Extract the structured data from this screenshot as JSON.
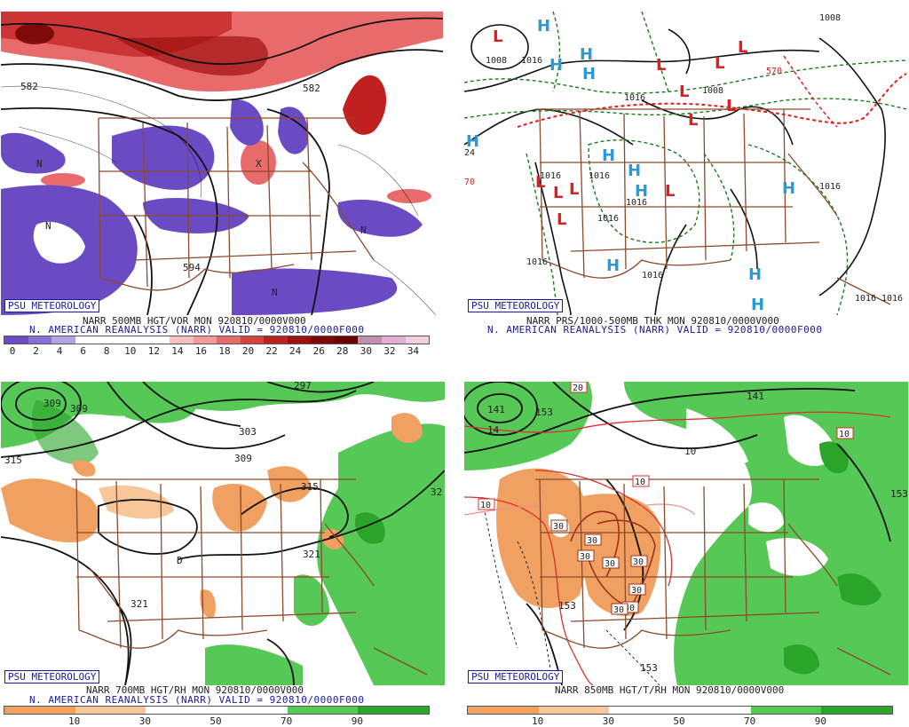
{
  "brand": "PSU METEOROLOGY",
  "colors": {
    "brand_blue": "#1a1aa0",
    "state_lines": "#8b4a2b",
    "contour": "#111111"
  },
  "panels": [
    {
      "id": "tl",
      "line1": "NARR 500MB HGT/VOR MON 920810/0000V000",
      "line2": "N. AMERICAN REANALYSIS (NARR) VALID = 920810/0000F000",
      "labels": [
        "582",
        "582",
        "594",
        "X",
        "N",
        "N",
        "N",
        "N"
      ],
      "colorbar": {
        "ticks": [
          "0",
          "2",
          "4",
          "6",
          "8",
          "10",
          "12",
          "14",
          "16",
          "18",
          "20",
          "22",
          "24",
          "26",
          "28",
          "30",
          "32",
          "34"
        ],
        "colors": [
          "#6a4bc4",
          "#8a6fd4",
          "#b3a2e4",
          "#ffffff",
          "#ffffff",
          "#ffffff",
          "#ffffff",
          "#f8c0c0",
          "#f39a9a",
          "#e86a6a",
          "#d94040",
          "#c02020",
          "#a01010",
          "#800808",
          "#6a0000",
          "#c090b0",
          "#e0b0d0",
          "#f0d0e0"
        ]
      }
    },
    {
      "id": "tr",
      "line1": "NARR PRS/1000-500MB THK MON 920810/0000V000",
      "line2": "N. AMERICAN REANALYSIS (NARR) VALID = 920810/0000F000",
      "labels": [
        "1008",
        "1016",
        "1008",
        "1016",
        "1016",
        "1016",
        "1016",
        "1016",
        "1016",
        "1016",
        "570",
        "24",
        "70",
        "1008",
        "1016",
        "1016",
        "1016"
      ],
      "highs": [
        "H",
        "H",
        "H",
        "H",
        "H",
        "H",
        "H",
        "H",
        "H",
        "H",
        "H",
        "H"
      ],
      "lows": [
        "L",
        "L",
        "L",
        "L",
        "L",
        "L",
        "L",
        "L",
        "L",
        "L",
        "L",
        "L"
      ]
    },
    {
      "id": "bl",
      "line1": "NARR 700MB HGT/RH MON 920810/0000V000",
      "line2": "N. AMERICAN REANALYSIS (NARR) VALID = 920810/0000F000",
      "labels": [
        "309",
        "309",
        "315",
        "303",
        "309",
        "315",
        "321",
        "321",
        "D",
        "297",
        "32"
      ],
      "colorbar": {
        "ticks": [
          "10",
          "30",
          "50",
          "70",
          "90"
        ],
        "colors": [
          "#f0a060",
          "#f7c79a",
          "#ffffff",
          "#ffffff",
          "#55c855",
          "#2aa52a"
        ]
      }
    },
    {
      "id": "br",
      "line1": "NARR 850MB HGT/T/RH MON 920810/0000V000",
      "line2": "",
      "labels": [
        "141",
        "14",
        "153",
        "141",
        "153",
        "153",
        "153",
        "10",
        "20",
        "10",
        "10",
        "10"
      ],
      "temp_boxes": [
        "30",
        "30",
        "30",
        "30",
        "30",
        "30",
        "30",
        "30"
      ],
      "colorbar": {
        "ticks": [
          "10",
          "30",
          "50",
          "70",
          "90"
        ],
        "colors": [
          "#f0a060",
          "#f7c79a",
          "#ffffff",
          "#ffffff",
          "#55c855",
          "#2aa52a"
        ]
      }
    }
  ]
}
